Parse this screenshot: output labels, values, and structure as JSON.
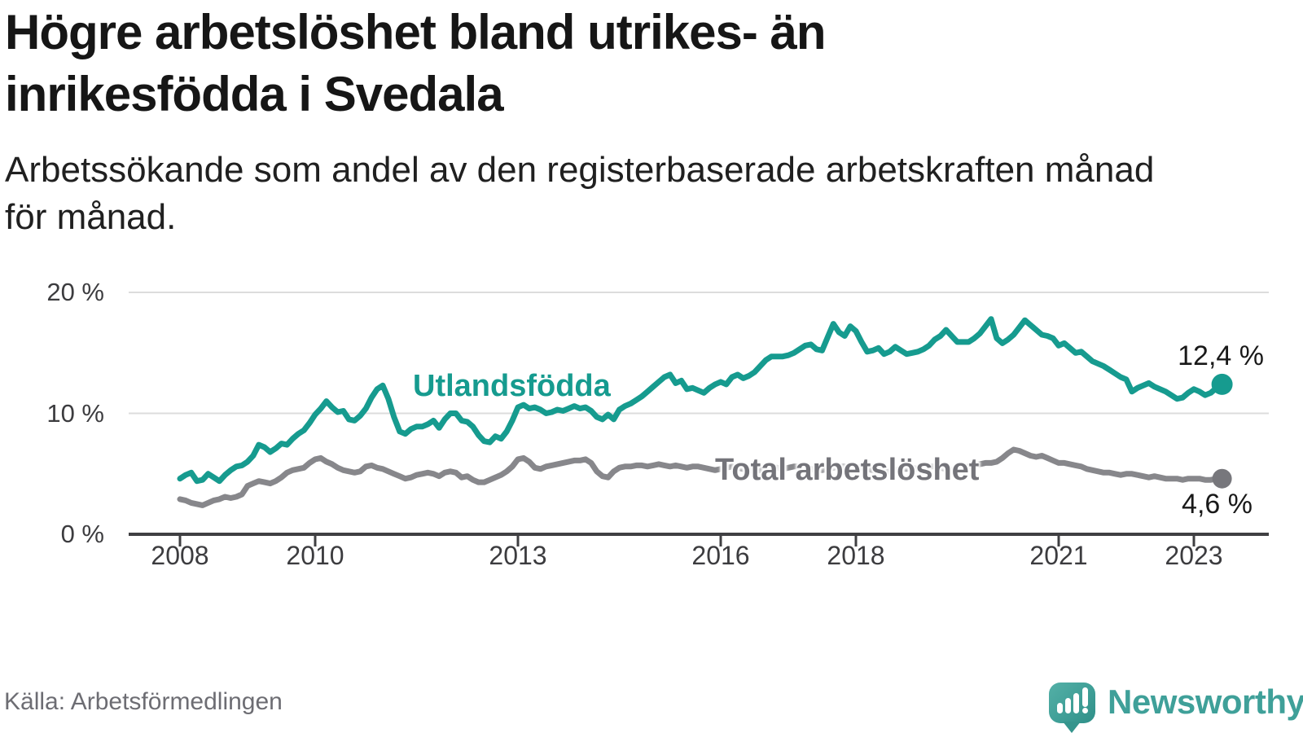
{
  "title_lines": [
    "Högre arbetslöshet bland utrikes- än",
    "inrikesfödda i Svedala"
  ],
  "subtitle_lines": [
    "Arbetssökande som andel av den registerbaserade arbetskraften månad",
    "för månad."
  ],
  "source": "Källa: Arbetsförmedlingen",
  "brand": {
    "name": "Newsworthy",
    "color": "#3fa099"
  },
  "chart_data": {
    "type": "line",
    "unit": "%",
    "frequency": "monthly",
    "x_start": "2008-01",
    "x_end": "2023-06",
    "x_tick_years": [
      2008,
      2010,
      2013,
      2016,
      2018,
      2021,
      2023
    ],
    "y_ticks": [
      {
        "value": 0,
        "label": "0 %"
      },
      {
        "value": 10,
        "label": "10 %"
      },
      {
        "value": 20,
        "label": "20 %"
      }
    ],
    "ylim": [
      0,
      21
    ],
    "grid": "horizontal",
    "legend": "inline-labels",
    "series": [
      {
        "name": "Utlandsfödda",
        "color": "#169b8f",
        "label_color": "#169b8f",
        "dot_color": "#169b8f",
        "end_label": "12,4 %",
        "end_value": 12.4,
        "values": [
          4.6,
          4.9,
          5.1,
          4.4,
          4.5,
          5.0,
          4.7,
          4.4,
          4.9,
          5.3,
          5.6,
          5.7,
          6.0,
          6.5,
          7.4,
          7.2,
          6.8,
          7.1,
          7.5,
          7.4,
          7.9,
          8.3,
          8.6,
          9.2,
          9.9,
          10.4,
          11.0,
          10.5,
          10.1,
          10.2,
          9.5,
          9.4,
          9.8,
          10.4,
          11.3,
          12.0,
          12.3,
          11.2,
          9.7,
          8.5,
          8.3,
          8.7,
          8.9,
          8.9,
          9.1,
          9.4,
          8.8,
          9.5,
          10.0,
          10.0,
          9.4,
          9.3,
          8.9,
          8.2,
          7.7,
          7.6,
          8.1,
          7.9,
          8.5,
          9.4,
          10.5,
          10.7,
          10.4,
          10.5,
          10.3,
          10.0,
          10.1,
          10.3,
          10.2,
          10.4,
          10.6,
          10.4,
          10.5,
          10.2,
          9.7,
          9.5,
          9.9,
          9.5,
          10.3,
          10.6,
          10.8,
          11.1,
          11.4,
          11.8,
          12.2,
          12.6,
          13.0,
          13.2,
          12.5,
          12.7,
          12.0,
          12.1,
          11.9,
          11.7,
          12.1,
          12.4,
          12.6,
          12.4,
          13.0,
          13.2,
          12.9,
          13.1,
          13.4,
          13.9,
          14.4,
          14.7,
          14.7,
          14.7,
          14.8,
          15.0,
          15.3,
          15.6,
          15.7,
          15.3,
          15.2,
          16.3,
          17.4,
          16.7,
          16.4,
          17.2,
          16.8,
          15.9,
          15.1,
          15.2,
          15.4,
          14.9,
          15.1,
          15.5,
          15.2,
          14.9,
          15.0,
          15.1,
          15.3,
          15.6,
          16.1,
          16.4,
          16.9,
          16.4,
          15.9,
          15.9,
          15.9,
          16.2,
          16.6,
          17.2,
          17.8,
          16.2,
          15.8,
          16.1,
          16.5,
          17.1,
          17.7,
          17.3,
          16.9,
          16.5,
          16.4,
          16.2,
          15.6,
          15.8,
          15.4,
          15.0,
          15.1,
          14.7,
          14.3,
          14.1,
          13.9,
          13.6,
          13.3,
          13.0,
          12.8,
          11.8,
          12.1,
          12.3,
          12.5,
          12.2,
          12.0,
          11.8,
          11.5,
          11.2,
          11.3,
          11.7,
          12.0,
          11.8,
          11.5,
          11.7,
          12.1,
          12.4
        ]
      },
      {
        "name": "Total arbetslöshet",
        "color": "#87878b",
        "label_color": "#74747a",
        "dot_color": "#77777c",
        "end_label": "4,6 %",
        "end_value": 4.6,
        "values": [
          2.9,
          2.8,
          2.6,
          2.5,
          2.4,
          2.6,
          2.8,
          2.9,
          3.1,
          3.0,
          3.1,
          3.3,
          4.0,
          4.2,
          4.4,
          4.3,
          4.2,
          4.4,
          4.7,
          5.1,
          5.3,
          5.4,
          5.5,
          5.9,
          6.2,
          6.3,
          6.0,
          5.8,
          5.5,
          5.3,
          5.2,
          5.1,
          5.2,
          5.6,
          5.7,
          5.5,
          5.4,
          5.2,
          5.0,
          4.8,
          4.6,
          4.7,
          4.9,
          5.0,
          5.1,
          5.0,
          4.8,
          5.1,
          5.2,
          5.1,
          4.7,
          4.8,
          4.5,
          4.3,
          4.3,
          4.5,
          4.7,
          4.9,
          5.2,
          5.6,
          6.2,
          6.3,
          6.0,
          5.5,
          5.4,
          5.6,
          5.7,
          5.8,
          5.9,
          6.0,
          6.1,
          6.1,
          6.2,
          5.9,
          5.2,
          4.8,
          4.7,
          5.2,
          5.5,
          5.6,
          5.6,
          5.7,
          5.7,
          5.6,
          5.7,
          5.8,
          5.7,
          5.6,
          5.7,
          5.6,
          5.5,
          5.6,
          5.6,
          5.5,
          5.4,
          5.3,
          5.4,
          5.5,
          5.6,
          5.5,
          5.4,
          5.3,
          5.2,
          5.3,
          5.4,
          5.5,
          5.5,
          5.4,
          5.5,
          5.6,
          5.6,
          5.5,
          5.4,
          5.3,
          5.3,
          5.4,
          5.5,
          5.6,
          5.6,
          5.5,
          5.6,
          5.5,
          5.4,
          5.3,
          5.2,
          5.1,
          5.2,
          5.3,
          5.4,
          5.4,
          5.5,
          5.4,
          5.5,
          5.6,
          5.6,
          5.5,
          5.4,
          5.3,
          5.4,
          5.5,
          5.6,
          5.7,
          5.8,
          5.9,
          5.9,
          6.0,
          6.3,
          6.7,
          7.0,
          6.9,
          6.7,
          6.5,
          6.4,
          6.5,
          6.3,
          6.1,
          5.9,
          5.9,
          5.8,
          5.7,
          5.6,
          5.4,
          5.3,
          5.2,
          5.1,
          5.1,
          5.0,
          4.9,
          5.0,
          5.0,
          4.9,
          4.8,
          4.7,
          4.8,
          4.7,
          4.6,
          4.6,
          4.6,
          4.5,
          4.6,
          4.6,
          4.6,
          4.5,
          4.5,
          4.6,
          4.6
        ]
      }
    ]
  }
}
